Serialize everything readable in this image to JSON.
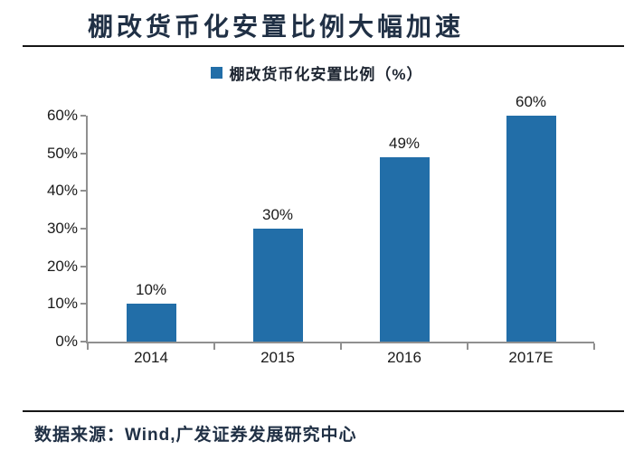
{
  "page": {
    "title": "棚改货币化安置比例大幅加速",
    "footer": {
      "source_text": "数据来源：Wind,广发证券发展研究中心"
    }
  },
  "colors": {
    "bar": "#226EA8",
    "title_text": "#203045",
    "axis": "#909090",
    "label_text": "#1a1a1a"
  },
  "chart_data": {
    "type": "bar",
    "title": "棚改货币化安置比例大幅加速",
    "legend": [
      "棚改货币化安置比例（%）"
    ],
    "legend_position": "top",
    "categories": [
      "2014",
      "2015",
      "2016",
      "2017E"
    ],
    "values": [
      10,
      30,
      49,
      60
    ],
    "value_labels": [
      "10%",
      "30%",
      "49%",
      "60%"
    ],
    "xlabel": "",
    "ylabel": "",
    "ylim": [
      0,
      60
    ],
    "ytick_step": 10,
    "ytick_labels": [
      "0%",
      "10%",
      "20%",
      "30%",
      "40%",
      "50%",
      "60%"
    ],
    "grid": false,
    "source": "数据来源：Wind,广发证券发展研究中心"
  }
}
